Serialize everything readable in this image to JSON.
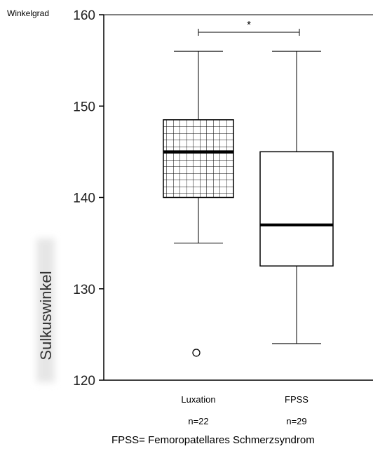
{
  "chart_data": {
    "type": "boxplot",
    "unit_label": "Winkelgrad",
    "ylabel": "Sulkuswinkel",
    "ylim": [
      120,
      160
    ],
    "yticks": [
      120,
      130,
      140,
      150,
      160
    ],
    "categories": [
      "Luxation",
      "FPSS"
    ],
    "n_labels": [
      "n=22",
      "n=29"
    ],
    "boxes": [
      {
        "category": "Luxation",
        "whisker_low": 135,
        "q1": 140,
        "median": 145,
        "q3": 148.5,
        "whisker_high": 156,
        "outliers": [
          123
        ],
        "pattern": "grid"
      },
      {
        "category": "FPSS",
        "whisker_low": 124,
        "q1": 132.5,
        "median": 137,
        "q3": 145,
        "whisker_high": 156,
        "outliers": [],
        "pattern": "none"
      }
    ],
    "significance": {
      "label": "*",
      "between": [
        "Luxation",
        "FPSS"
      ],
      "level": 158
    },
    "footnote": "FPSS= Femoropatellares Schmerzsyndrom"
  }
}
